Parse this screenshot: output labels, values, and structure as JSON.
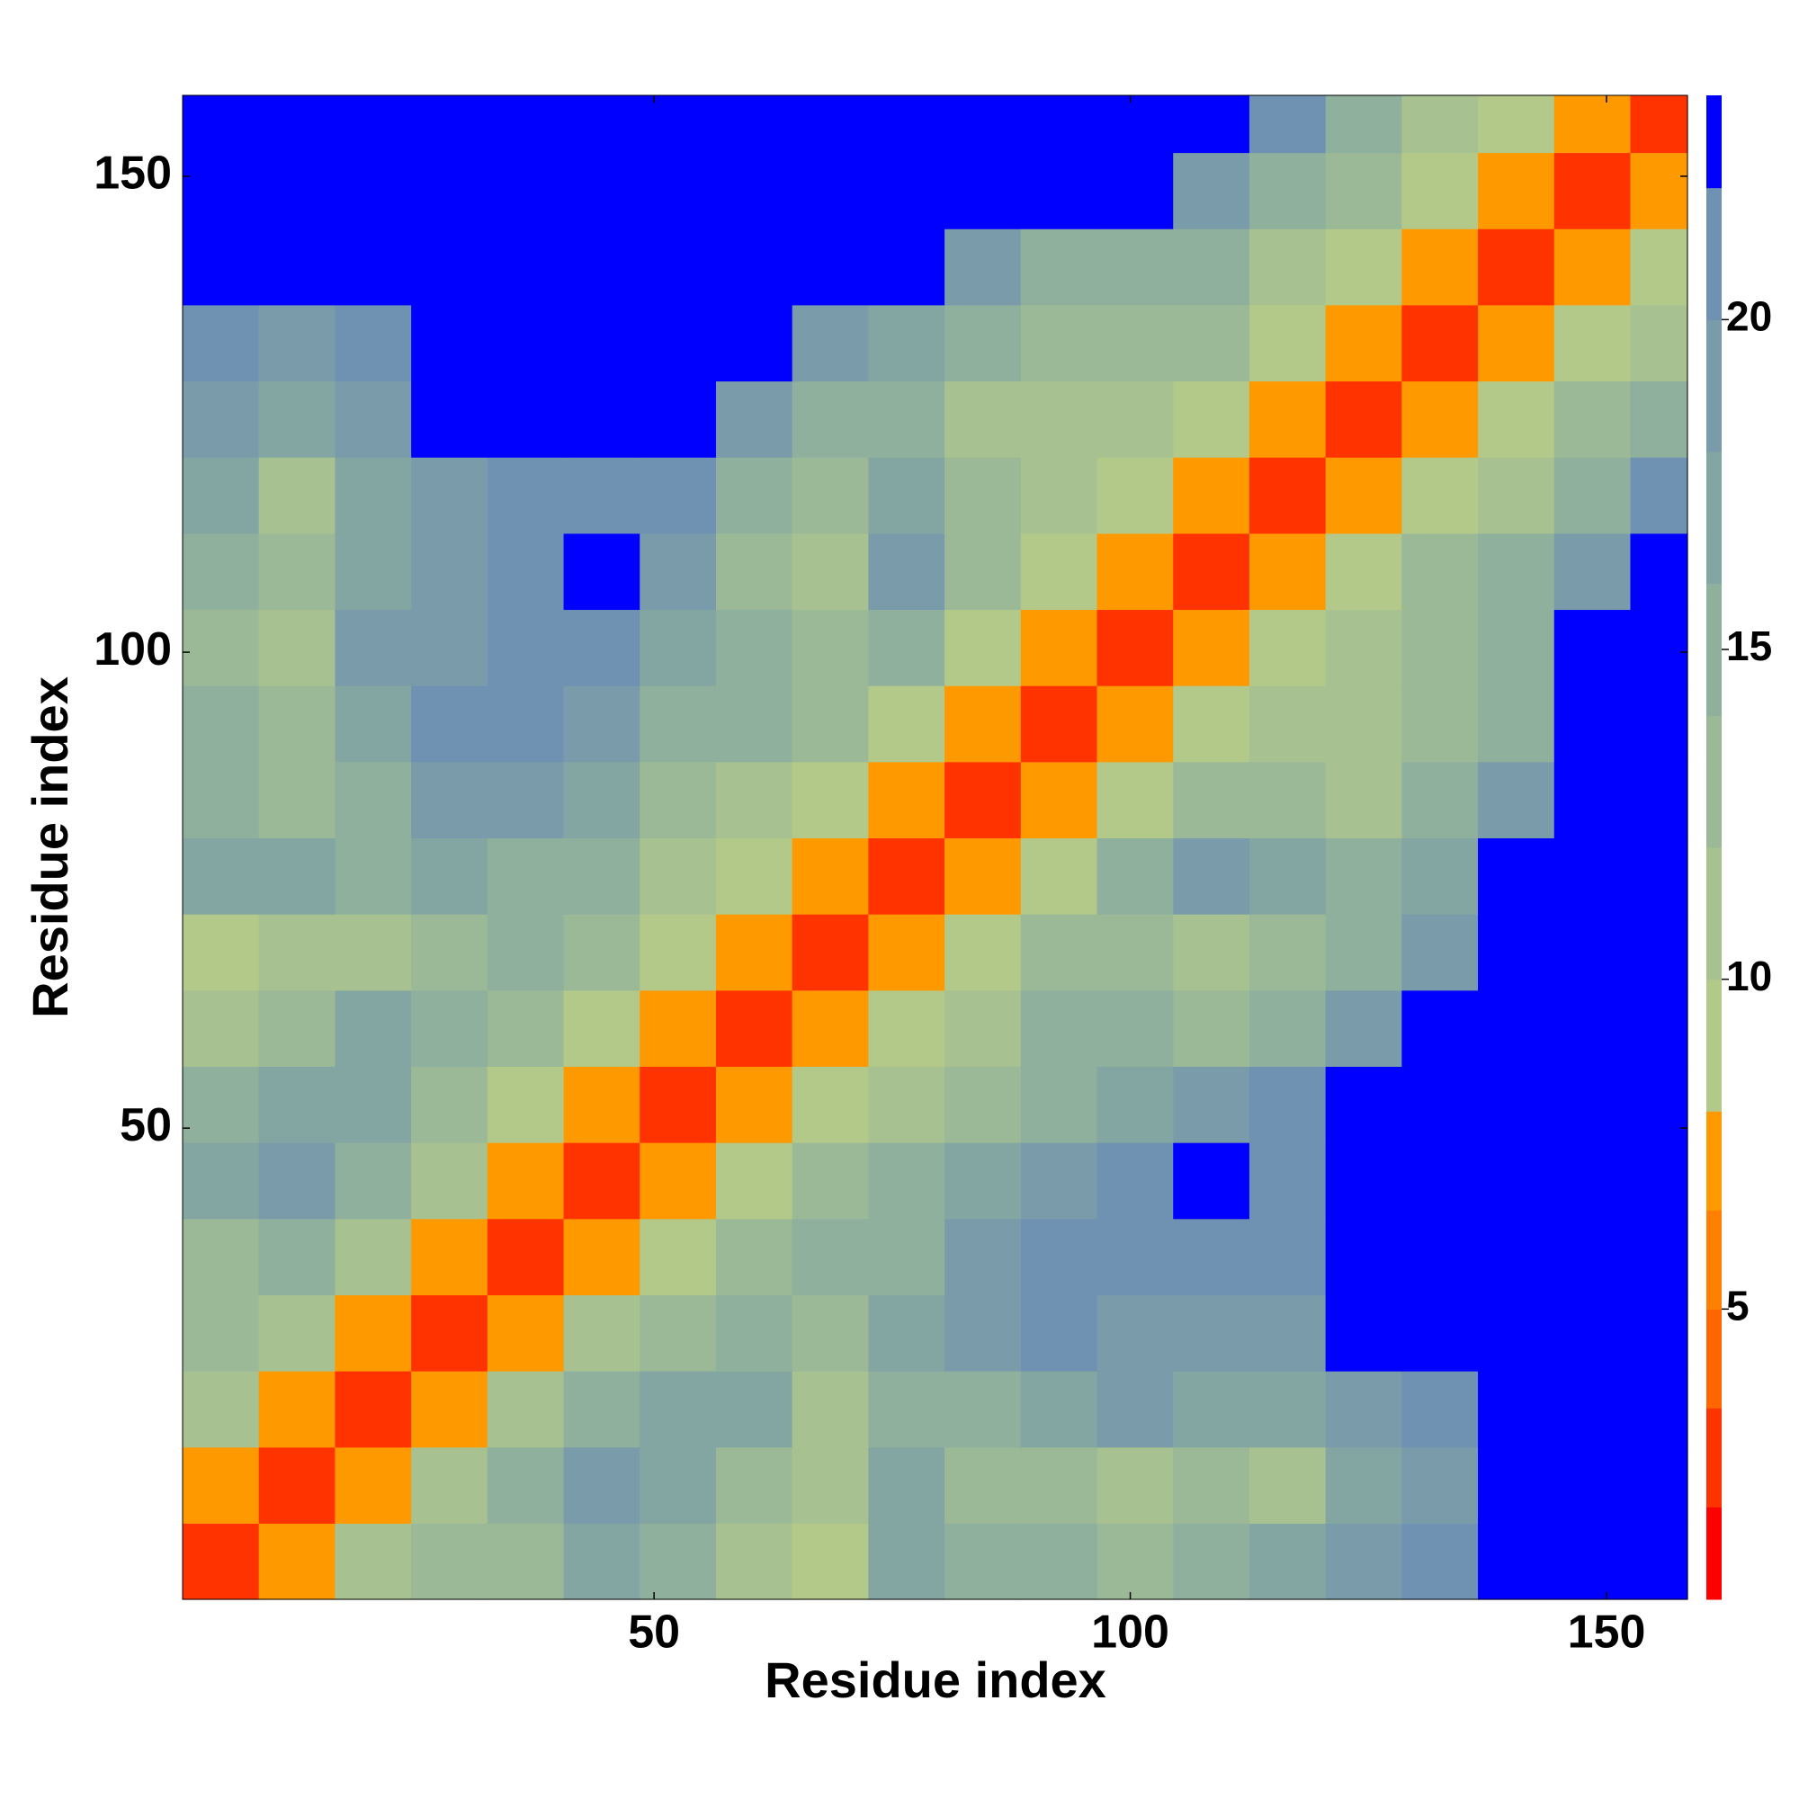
{
  "chart_data": {
    "type": "heatmap",
    "xlabel": "Residue index",
    "ylabel": "Residue index",
    "xlim": [
      0.5,
      158.5
    ],
    "ylim": [
      0.5,
      158.5
    ],
    "xticks": [
      50,
      100,
      150
    ],
    "yticks": [
      50,
      100,
      150
    ],
    "xbins": [
      0.5,
      8.5,
      16.5,
      24.5,
      32.5,
      40.5,
      48.5,
      56.5,
      64.5,
      72.5,
      80.5,
      88.5,
      96.5,
      104.5,
      112.5,
      120.5,
      128.5,
      136.5,
      144.5,
      152.5,
      158.5
    ],
    "ybins": [
      0.5,
      8.5,
      16.5,
      24.5,
      32.5,
      40.5,
      48.5,
      56.5,
      64.5,
      72.5,
      80.5,
      88.5,
      96.5,
      104.5,
      112.5,
      120.5,
      128.5,
      136.5,
      144.5,
      152.5,
      158.5
    ],
    "values": [
      [
        3,
        8,
        12,
        14,
        14,
        18,
        16,
        12,
        10,
        18,
        16,
        15,
        14,
        16,
        17,
        20,
        21,
        23,
        23,
        23
      ],
      [
        8,
        3,
        8,
        12,
        15,
        20,
        18,
        13,
        12,
        18,
        14,
        13,
        12,
        13,
        12,
        17,
        19,
        23,
        23,
        23
      ],
      [
        12,
        8,
        3,
        8,
        11,
        15,
        18,
        18,
        12,
        15,
        16,
        18,
        19,
        18,
        18,
        20,
        22,
        23,
        23,
        23
      ],
      [
        14,
        12,
        8,
        3,
        8,
        11,
        14,
        16,
        14,
        18,
        20,
        21,
        20,
        19,
        20,
        23,
        23,
        23,
        23,
        23
      ],
      [
        14,
        15,
        11,
        8,
        3,
        8,
        10,
        13,
        15,
        16,
        19,
        21,
        22,
        21,
        21,
        23,
        23,
        23,
        23,
        23
      ],
      [
        18,
        20,
        15,
        11,
        8,
        3,
        7,
        10,
        14,
        15,
        17,
        20,
        22,
        23,
        22,
        23,
        23,
        23,
        23,
        23
      ],
      [
        16,
        18,
        18,
        14,
        10,
        7,
        3,
        7,
        9,
        12,
        13,
        16,
        18,
        20,
        21,
        23,
        23,
        23,
        23,
        23
      ],
      [
        12,
        13,
        18,
        16,
        13,
        10,
        7,
        3,
        7,
        9,
        12,
        15,
        15,
        14,
        16,
        20,
        23,
        23,
        23,
        23
      ],
      [
        10,
        12,
        12,
        14,
        15,
        14,
        9,
        7,
        3,
        7,
        10,
        14,
        13,
        12,
        13,
        16,
        20,
        23,
        23,
        23
      ],
      [
        18,
        18,
        15,
        18,
        16,
        15,
        12,
        9,
        7,
        3,
        7,
        10,
        16,
        19,
        17,
        15,
        18,
        23,
        23,
        23
      ],
      [
        16,
        14,
        16,
        20,
        19,
        17,
        13,
        12,
        10,
        7,
        3,
        7,
        10,
        14,
        13,
        12,
        15,
        19,
        23,
        23
      ],
      [
        15,
        13,
        18,
        21,
        21,
        20,
        16,
        15,
        14,
        10,
        7,
        3,
        7,
        10,
        12,
        11,
        14,
        16,
        23,
        23
      ],
      [
        14,
        12,
        19,
        20,
        22,
        22,
        18,
        15,
        13,
        16,
        10,
        7,
        3,
        7,
        10,
        12,
        13,
        15,
        23,
        23
      ],
      [
        16,
        13,
        18,
        19,
        21,
        23,
        20,
        14,
        12,
        19,
        14,
        10,
        7,
        3,
        7,
        10,
        13,
        15,
        20,
        23
      ],
      [
        17,
        12,
        18,
        20,
        21,
        22,
        21,
        16,
        13,
        17,
        13,
        12,
        10,
        7,
        3,
        7,
        9,
        12,
        16,
        21
      ],
      [
        20,
        17,
        20,
        23,
        23,
        23,
        23,
        20,
        16,
        15,
        12,
        11,
        12,
        10,
        7,
        3,
        7,
        10,
        13,
        16
      ],
      [
        21,
        19,
        22,
        23,
        23,
        23,
        23,
        23,
        20,
        18,
        15,
        14,
        13,
        13,
        9,
        7,
        3,
        7,
        9,
        12
      ],
      [
        23,
        23,
        23,
        23,
        23,
        23,
        23,
        23,
        23,
        23,
        19,
        16,
        15,
        15,
        12,
        10,
        7,
        3,
        7,
        10
      ],
      [
        23,
        23,
        23,
        23,
        23,
        23,
        23,
        23,
        23,
        23,
        23,
        23,
        23,
        20,
        16,
        13,
        9,
        7,
        3,
        7
      ],
      [
        23,
        23,
        23,
        23,
        23,
        23,
        23,
        23,
        23,
        23,
        23,
        23,
        23,
        23,
        21,
        16,
        12,
        10,
        7,
        3
      ]
    ],
    "clim": [
      0.6,
      23.4
    ],
    "cticks": [
      5,
      10,
      15,
      20
    ],
    "levels": [
      0.6,
      2,
      3.5,
      5,
      6.5,
      8,
      10,
      12,
      14,
      16,
      18,
      20,
      22,
      23.4
    ],
    "colors": [
      "#ff0000",
      "#ff3300",
      "#ff6600",
      "#ff8000",
      "#ff9900",
      "#b3c98a",
      "#a7c190",
      "#9bb996",
      "#8fb09c",
      "#84a6a3",
      "#7a9caa",
      "#6f92b2",
      "#0000ff"
    ]
  }
}
